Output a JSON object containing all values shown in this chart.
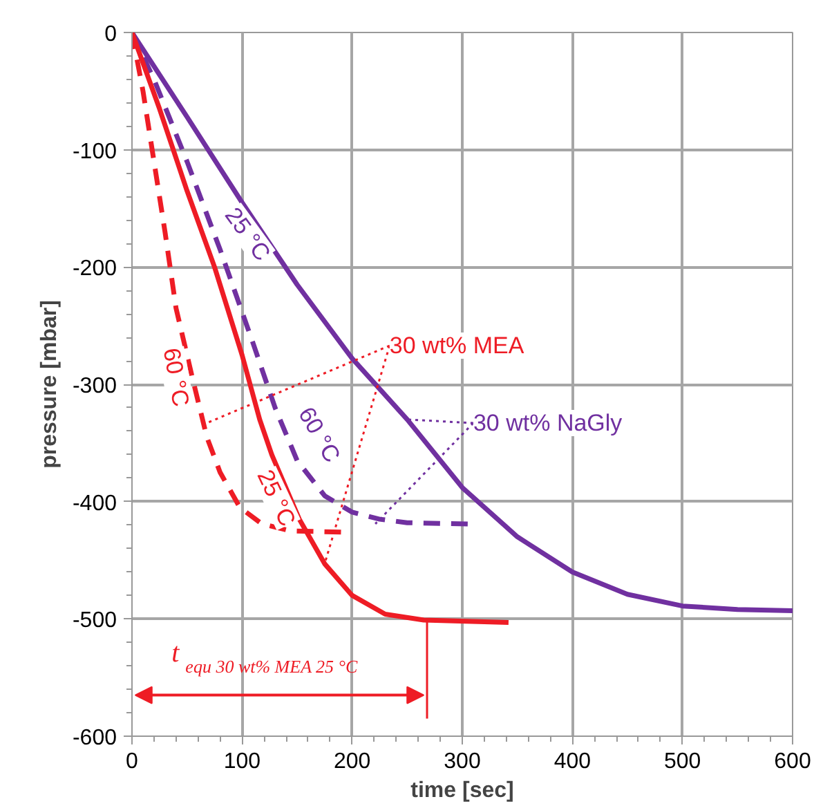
{
  "chart_data": {
    "type": "line",
    "xlabel": "time [sec]",
    "ylabel": "pressure [mbar]",
    "xlim": [
      0,
      600
    ],
    "ylim": [
      -600,
      0
    ],
    "xticks": [
      0,
      100,
      200,
      300,
      400,
      500,
      600
    ],
    "yticks": [
      -600,
      -500,
      -400,
      -300,
      -200,
      -100,
      0
    ],
    "grid": true,
    "marker": "none",
    "series": [
      {
        "name": "25 °C",
        "color": "#7030a0",
        "line_style": "solid",
        "x": [
          0,
          50,
          100,
          150,
          200,
          250,
          300,
          350,
          400,
          450,
          500,
          550,
          600
        ],
        "values": [
          0,
          -72,
          -145,
          -215,
          -278,
          -330,
          -388,
          -430,
          -460,
          -479,
          -489,
          -492,
          -493
        ]
      },
      {
        "name": "60 °C",
        "color": "#ee1c25",
        "line_style": "dashed",
        "x": [
          0,
          10,
          20,
          30,
          40,
          55,
          68,
          80,
          98,
          118,
          144,
          191
        ],
        "values": [
          0,
          -50,
          -110,
          -170,
          -235,
          -295,
          -345,
          -375,
          -405,
          -419,
          -425,
          -426
        ]
      },
      {
        "name": "60 °C",
        "color": "#7030a0",
        "line_style": "dashed",
        "x": [
          0,
          20,
          50,
          80,
          110,
          130,
          150,
          175,
          200,
          225,
          250,
          305
        ],
        "values": [
          0,
          -40,
          -110,
          -185,
          -265,
          -320,
          -365,
          -395,
          -409,
          -415,
          -418,
          -419
        ]
      },
      {
        "name": "25 °C",
        "color": "#ee1c25",
        "line_style": "solid",
        "x": [
          0,
          25,
          50,
          75,
          100,
          116,
          127,
          152,
          175,
          200,
          230,
          265,
          342
        ],
        "values": [
          0,
          -65,
          -135,
          -200,
          -275,
          -330,
          -360,
          -415,
          -453,
          -480,
          -496,
          -501,
          -503
        ]
      }
    ],
    "ref_lines": [
      {
        "axis": "x",
        "value": 268,
        "color": "#ee1c25"
      }
    ],
    "annotations": [
      {
        "text": "30 wt% MEA",
        "x": 63,
        "y": -335
      },
      {
        "text": "30 wt% NaGly",
        "x": 221,
        "y": -419
      },
      "t$_{equ 30 wt% MEA 25 °C}$"
    ]
  }
}
